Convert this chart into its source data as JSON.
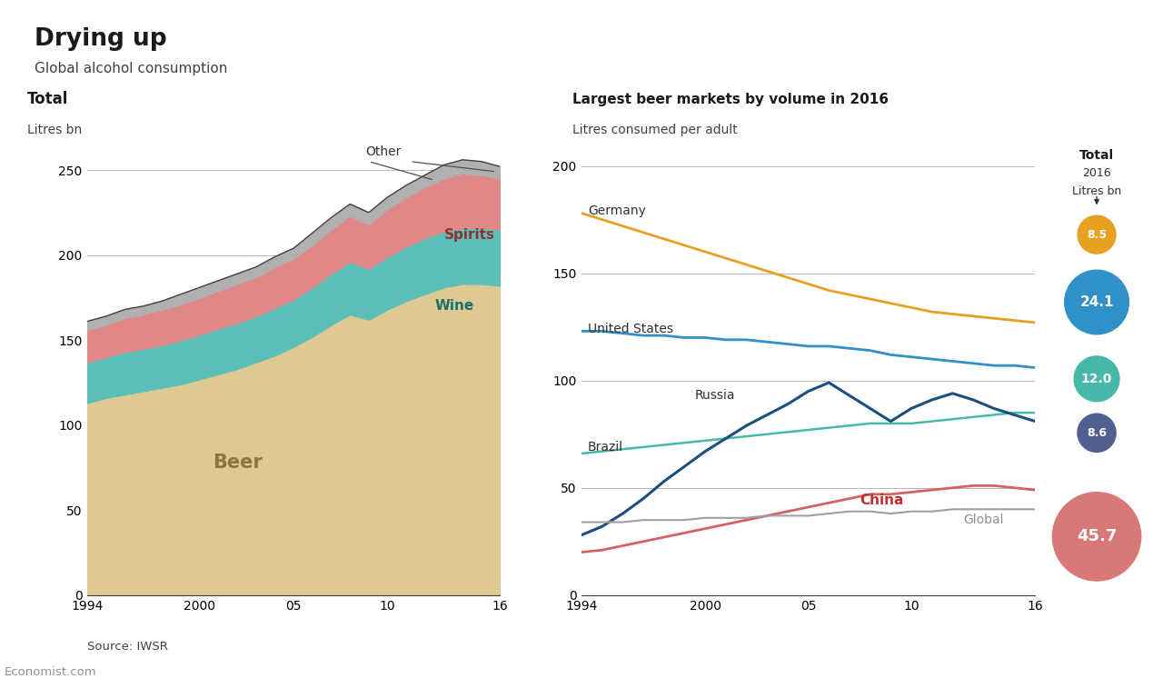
{
  "title": "Drying up",
  "subtitle": "Global alcohol consumption",
  "left_title": "Total",
  "left_ylabel": "Litres bn",
  "right_title": "Largest beer markets by volume in 2016",
  "right_ylabel": "Litres consumed per adult",
  "source": "Source: IWSR",
  "branding": "Economist.com",
  "years_left": [
    1994,
    1995,
    1996,
    1997,
    1998,
    1999,
    2000,
    2001,
    2002,
    2003,
    2004,
    2005,
    2006,
    2007,
    2008,
    2009,
    2010,
    2011,
    2012,
    2013,
    2014,
    2015,
    2016
  ],
  "beer": [
    113,
    116,
    118,
    120,
    122,
    124,
    127,
    130,
    133,
    137,
    141,
    146,
    152,
    159,
    165,
    162,
    168,
    173,
    177,
    181,
    183,
    183,
    182
  ],
  "wine": [
    24,
    24,
    25,
    25,
    25,
    26,
    26,
    27,
    27,
    27,
    28,
    28,
    29,
    30,
    31,
    30,
    31,
    32,
    33,
    33,
    33,
    33,
    33
  ],
  "spirits": [
    19,
    19,
    20,
    20,
    21,
    21,
    22,
    22,
    23,
    23,
    24,
    24,
    25,
    26,
    27,
    26,
    28,
    29,
    30,
    31,
    32,
    31,
    30
  ],
  "other": [
    5,
    5,
    5,
    5,
    5,
    6,
    6,
    6,
    6,
    6,
    6,
    6,
    7,
    7,
    7,
    7,
    7,
    7,
    7,
    8,
    8,
    8,
    7
  ],
  "beer_color": "#dfc992",
  "wine_color": "#5bbfb8",
  "spirits_color": "#e08888",
  "other_color": "#b0b0b0",
  "years_right": [
    1994,
    1995,
    1996,
    1997,
    1998,
    1999,
    2000,
    2001,
    2002,
    2003,
    2004,
    2005,
    2006,
    2007,
    2008,
    2009,
    2010,
    2011,
    2012,
    2013,
    2014,
    2015,
    2016
  ],
  "germany": [
    178,
    175,
    172,
    169,
    166,
    163,
    160,
    157,
    154,
    151,
    148,
    145,
    142,
    140,
    138,
    136,
    134,
    132,
    131,
    130,
    129,
    128,
    127
  ],
  "united_states": [
    123,
    123,
    122,
    121,
    121,
    120,
    120,
    119,
    119,
    118,
    117,
    116,
    116,
    115,
    114,
    112,
    111,
    110,
    109,
    108,
    107,
    107,
    106
  ],
  "brazil": [
    66,
    67,
    68,
    69,
    70,
    71,
    72,
    73,
    74,
    75,
    76,
    77,
    78,
    79,
    80,
    80,
    80,
    81,
    82,
    83,
    84,
    85,
    85
  ],
  "russia": [
    28,
    32,
    38,
    45,
    53,
    60,
    67,
    73,
    79,
    84,
    89,
    95,
    99,
    93,
    87,
    81,
    87,
    91,
    94,
    91,
    87,
    84,
    81
  ],
  "china": [
    20,
    21,
    23,
    25,
    27,
    29,
    31,
    33,
    35,
    37,
    39,
    41,
    43,
    45,
    47,
    47,
    48,
    49,
    50,
    51,
    51,
    50,
    49
  ],
  "global": [
    34,
    34,
    34,
    35,
    35,
    35,
    36,
    36,
    36,
    37,
    37,
    37,
    38,
    39,
    39,
    38,
    39,
    39,
    40,
    40,
    40,
    40,
    40
  ],
  "germany_color": "#e8a020",
  "united_states_color": "#3090c8",
  "brazil_color": "#48b8a8",
  "russia_color": "#1a5080",
  "china_color": "#d86060",
  "global_color": "#a0a0a0",
  "bubble_labels": [
    "8.5",
    "24.1",
    "12.0",
    "8.6",
    "45.7"
  ],
  "bubble_sizes": [
    8.5,
    24.1,
    12.0,
    8.6,
    45.7
  ],
  "bubble_colors": [
    "#e8a020",
    "#3090c8",
    "#48b8a8",
    "#506090",
    "#d87878"
  ],
  "left_ylim": [
    0,
    265
  ],
  "right_ylim": [
    0,
    210
  ],
  "bg_color": "#ffffff",
  "red_bar_color": "#cc2222"
}
